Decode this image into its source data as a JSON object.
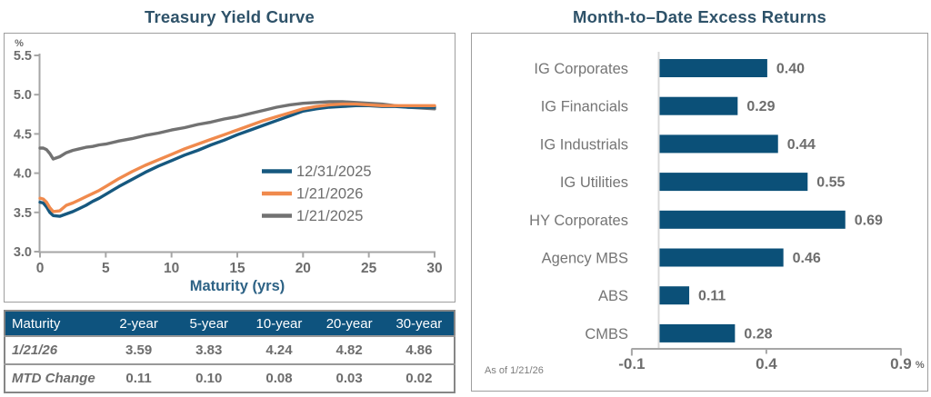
{
  "left": {
    "title": "Treasury Yield Curve",
    "table": {
      "header": [
        "Maturity",
        "2-year",
        "5-year",
        "10-year",
        "20-year",
        "30-year"
      ],
      "rows": [
        {
          "label": "1/21/26",
          "values": [
            "3.59",
            "3.83",
            "4.24",
            "4.82",
            "4.86"
          ]
        },
        {
          "label": "MTD Change",
          "values": [
            "0.11",
            "0.10",
            "0.08",
            "0.03",
            "0.02"
          ]
        }
      ]
    }
  },
  "right": {
    "title": "Month-to–Date Excess Returns",
    "as_of": "As of 1/21/26"
  },
  "colors": {
    "accent_blue": "#0e537e",
    "line_blue": "#16587f",
    "line_orange": "#f08a4d",
    "line_gray": "#727272",
    "title_color": "#2e5269",
    "text_gray": "#6d6d6d"
  },
  "chart_data": [
    {
      "type": "line",
      "title": "Treasury Yield Curve",
      "xlabel": "Maturity (yrs)",
      "ylabel": "%",
      "xlim": [
        0,
        30
      ],
      "ylim": [
        3.0,
        5.5
      ],
      "grid": false,
      "legend_position": "inside-right",
      "xticks": [
        0,
        5,
        10,
        15,
        20,
        25,
        30
      ],
      "yticks": [
        5.5,
        5.0,
        4.5,
        4.0,
        3.5,
        3.0
      ],
      "ytick_labels": [
        "5.5",
        "5.0",
        "4.5",
        "4.0",
        "3.5",
        "3.0"
      ],
      "axis_color": "#a6a6a6",
      "tick_color": "#6d6d6d",
      "xlabel_color": "#2d6285",
      "x": [
        0,
        0.25,
        0.5,
        0.75,
        1,
        1.5,
        2,
        2.5,
        3,
        3.5,
        4,
        4.5,
        5,
        6,
        7,
        8,
        9,
        10,
        11,
        12,
        13,
        14,
        15,
        16,
        17,
        18,
        19,
        20,
        21,
        22,
        23,
        24,
        25,
        26,
        27,
        28,
        29,
        30
      ],
      "series": [
        {
          "name": "12/31/2025",
          "color": "#16587f",
          "values": [
            3.63,
            3.62,
            3.57,
            3.5,
            3.46,
            3.45,
            3.48,
            3.51,
            3.55,
            3.59,
            3.64,
            3.68,
            3.73,
            3.83,
            3.92,
            4.01,
            4.09,
            4.16,
            4.23,
            4.29,
            4.36,
            4.42,
            4.49,
            4.55,
            4.61,
            4.67,
            4.73,
            4.79,
            4.82,
            4.84,
            4.85,
            4.86,
            4.86,
            4.85,
            4.85,
            4.84,
            4.84,
            4.84
          ]
        },
        {
          "name": "1/21/2026",
          "color": "#f08a4d",
          "values": [
            3.68,
            3.67,
            3.63,
            3.56,
            3.51,
            3.52,
            3.59,
            3.62,
            3.66,
            3.7,
            3.74,
            3.78,
            3.83,
            3.93,
            4.02,
            4.1,
            4.17,
            4.24,
            4.31,
            4.37,
            4.43,
            4.49,
            4.55,
            4.61,
            4.67,
            4.72,
            4.77,
            4.82,
            4.85,
            4.87,
            4.88,
            4.88,
            4.87,
            4.86,
            4.86,
            4.86,
            4.86,
            4.86
          ]
        },
        {
          "name": "1/21/2025",
          "color": "#727272",
          "values": [
            4.32,
            4.32,
            4.3,
            4.25,
            4.18,
            4.21,
            4.26,
            4.29,
            4.31,
            4.33,
            4.34,
            4.36,
            4.37,
            4.41,
            4.44,
            4.48,
            4.51,
            4.55,
            4.58,
            4.62,
            4.65,
            4.69,
            4.72,
            4.76,
            4.8,
            4.84,
            4.87,
            4.89,
            4.9,
            4.91,
            4.91,
            4.9,
            4.89,
            4.88,
            4.86,
            4.84,
            4.83,
            4.82
          ]
        }
      ]
    },
    {
      "type": "bar",
      "orientation": "horizontal",
      "title": "Month-to–Date Excess Returns",
      "categories": [
        "IG Corporates",
        "IG Financials",
        "IG Industrials",
        "IG Utilities",
        "HY Corporates",
        "Agency MBS",
        "ABS",
        "CMBS"
      ],
      "values": [
        0.4,
        0.29,
        0.44,
        0.55,
        0.69,
        0.46,
        0.11,
        0.28
      ],
      "value_labels": [
        "0.40",
        "0.29",
        "0.44",
        "0.55",
        "0.69",
        "0.46",
        "0.11",
        "0.28"
      ],
      "xlim": [
        -0.1,
        0.9
      ],
      "xticks": [
        -0.1,
        0.4,
        0.9
      ],
      "xtick_labels": [
        "-0.1",
        "0.4",
        "0.9"
      ],
      "unit": "%",
      "bar_color": "#0b5078",
      "category_color": "#757575",
      "value_color": "#6d6d6d",
      "axis_color": "#a6a6a6",
      "zero_line_color": "#d9d9d9",
      "as_of": "As of 1/21/26"
    }
  ]
}
